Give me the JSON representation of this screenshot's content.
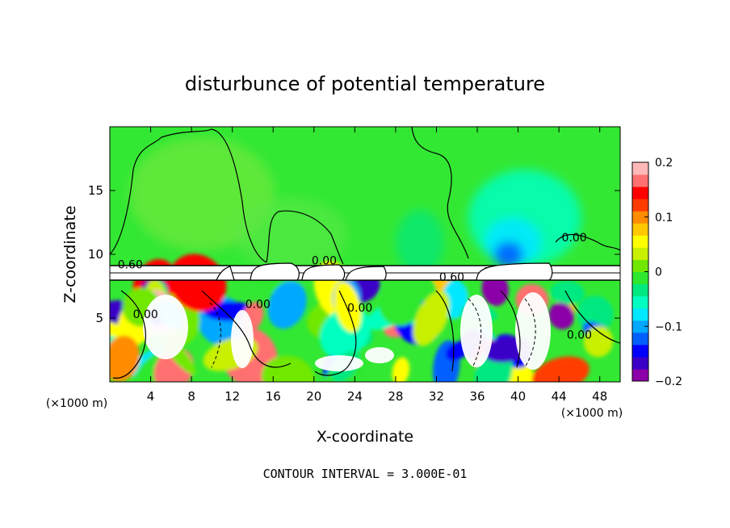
{
  "chart_data": {
    "type": "heatmap",
    "title": "disturbunce of potential temperature",
    "xlabel": "X-coordinate",
    "ylabel": "Z-coordinate",
    "x_unit": "(×1000 m)",
    "z_unit": "(×1000 m)",
    "xlim": [
      0,
      50
    ],
    "ylim": [
      0,
      20
    ],
    "x_ticks": [
      4,
      8,
      12,
      16,
      20,
      24,
      28,
      32,
      36,
      40,
      44,
      48
    ],
    "y_ticks": [
      5,
      10,
      15
    ],
    "colorbar": {
      "min": -0.2,
      "max": 0.2,
      "tick_values": [
        0.2,
        0.1,
        0,
        -0.1,
        -0.2
      ],
      "tick_labels": [
        "0.2",
        "0.1",
        "0",
        "−0.1",
        "−0.2"
      ],
      "colors": [
        "#8b00a8",
        "#3a00c8",
        "#0000ff",
        "#0060ff",
        "#00a8ff",
        "#00e8ff",
        "#00ffc0",
        "#00e880",
        "#2ee82e",
        "#70e800",
        "#c8f000",
        "#ffff00",
        "#ffc800",
        "#ff8c00",
        "#ff3c00",
        "#ff0000",
        "#ff7070",
        "#ffb8b8"
      ]
    },
    "contour_labels": [
      {
        "text": "0.60",
        "x": 2.0,
        "z": 8.9
      },
      {
        "text": "0.00",
        "x": 21.0,
        "z": 9.2
      },
      {
        "text": "0.60",
        "x": 33.5,
        "z": 7.9
      },
      {
        "text": "0.00",
        "x": 45.5,
        "z": 11.0
      },
      {
        "text": "0.00",
        "x": 14.5,
        "z": 5.8
      },
      {
        "text": "0.00",
        "x": 3.5,
        "z": 5.0
      },
      {
        "text": "0.00",
        "x": 24.5,
        "z": 5.5
      },
      {
        "text": "0.00",
        "x": 46.0,
        "z": 3.4
      }
    ],
    "footnote": "CONTOUR INTERVAL = 3.000E-01"
  },
  "colors": {
    "background_field": "#33e833",
    "band": "#ffffff",
    "contour": "#000000"
  }
}
